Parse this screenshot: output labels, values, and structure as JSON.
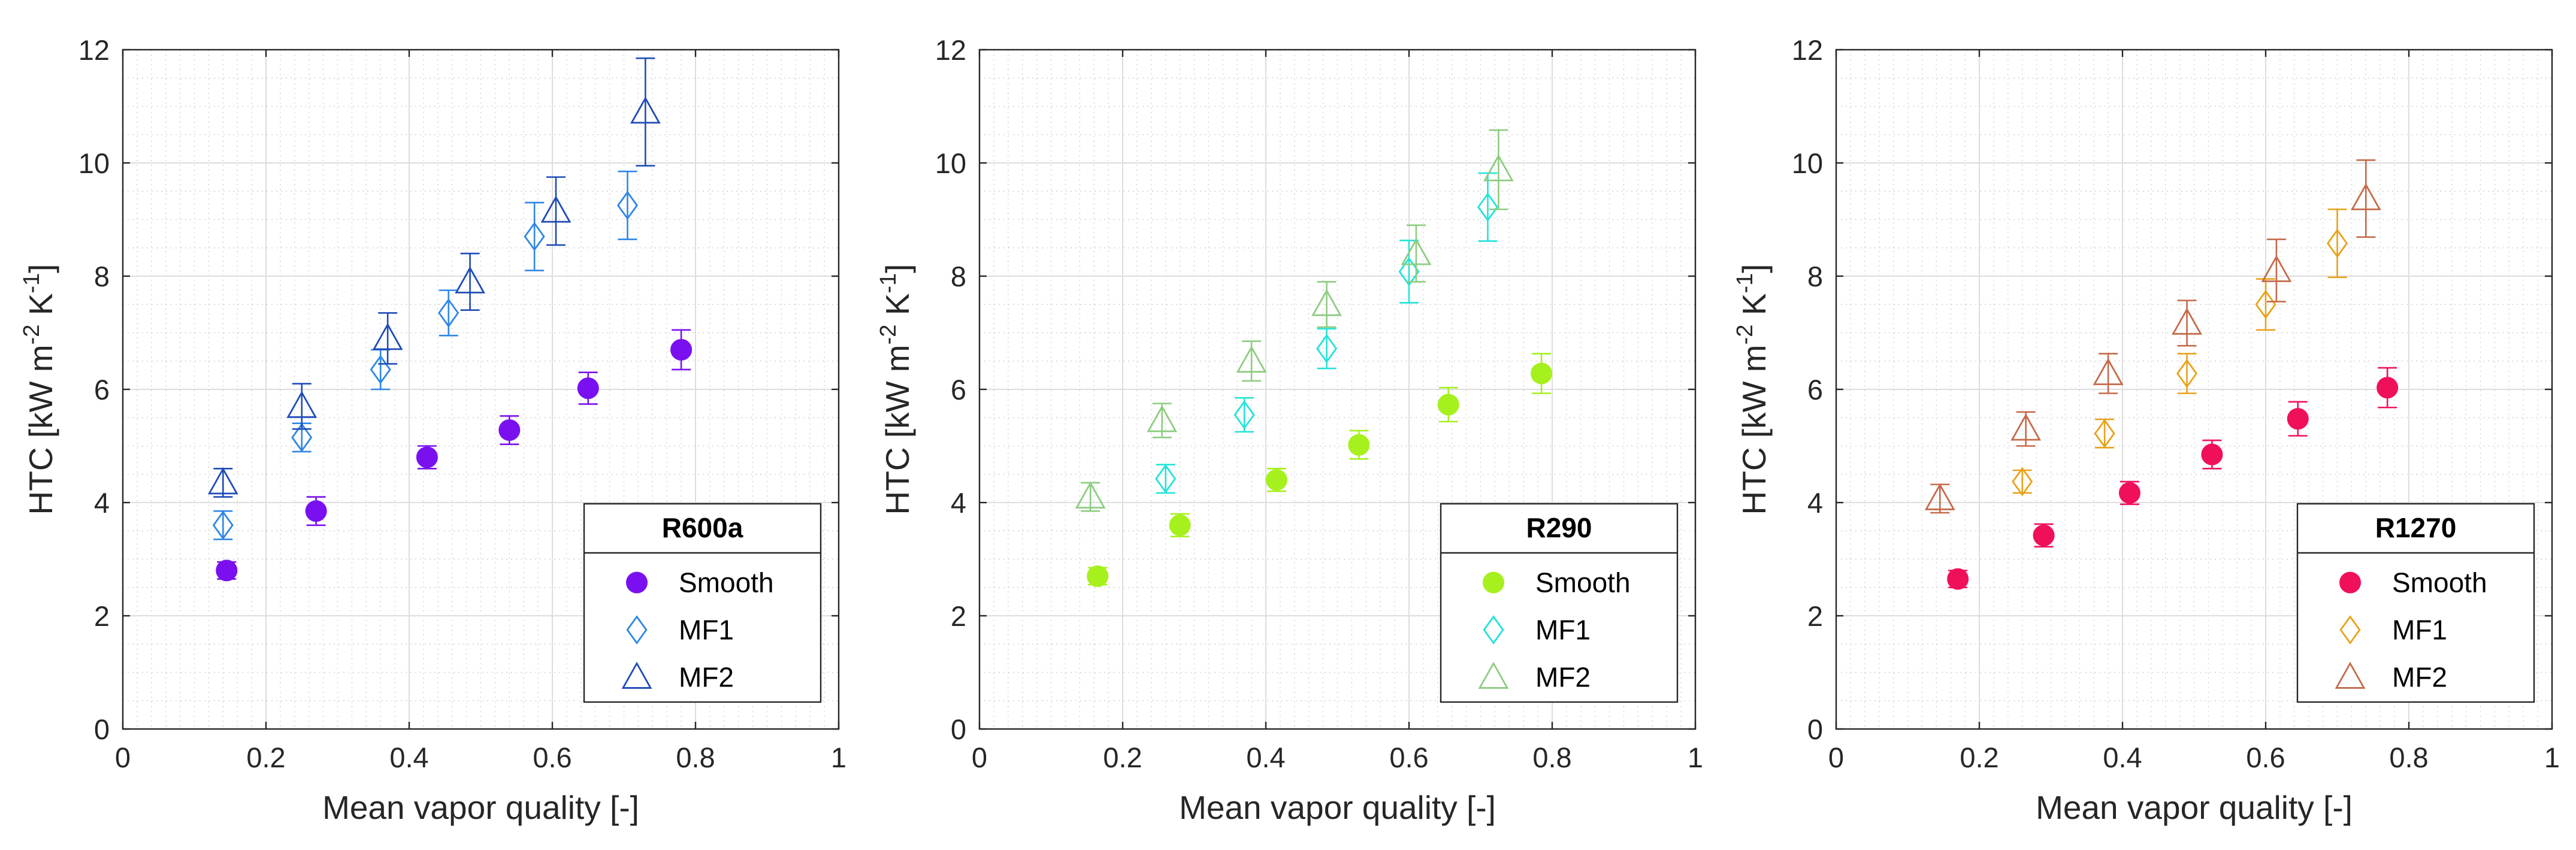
{
  "chart_data": [
    {
      "type": "scatter",
      "title": "",
      "legend_title": "R600a",
      "legend_position": "bottom-right",
      "xlabel": "Mean vapor quality [-]",
      "ylabel_main": "HTC [kW m",
      "ylabel_exp1": "-2",
      "ylabel_mid": " K",
      "ylabel_exp2": "-1",
      "ylabel_end": "]",
      "xlim": [
        0,
        1
      ],
      "ylim": [
        0,
        12
      ],
      "grid": true,
      "minor_grid": true,
      "x_ticks": [
        "0",
        "0.2",
        "0.4",
        "0.6",
        "0.8",
        "1"
      ],
      "y_ticks": [
        "0",
        "2",
        "4",
        "6",
        "8",
        "10",
        "12"
      ],
      "series": [
        {
          "name": "Smooth",
          "marker": "filled-circle",
          "color": "#7A10F0",
          "x": [
            0.145,
            0.27,
            0.425,
            0.54,
            0.65,
            0.78
          ],
          "y": [
            2.8,
            3.85,
            4.8,
            5.28,
            6.02,
            6.7
          ],
          "err": [
            0.15,
            0.25,
            0.2,
            0.25,
            0.28,
            0.35
          ]
        },
        {
          "name": "MF1",
          "marker": "diamond",
          "color": "#2E86E6",
          "x": [
            0.14,
            0.25,
            0.36,
            0.455,
            0.575,
            0.705
          ],
          "y": [
            3.6,
            5.15,
            6.35,
            7.35,
            8.7,
            9.25
          ],
          "err": [
            0.25,
            0.25,
            0.35,
            0.4,
            0.6,
            0.6
          ]
        },
        {
          "name": "MF2",
          "marker": "triangle",
          "color": "#1F4BB8",
          "x": [
            0.14,
            0.25,
            0.37,
            0.485,
            0.605,
            0.73
          ],
          "y": [
            4.35,
            5.7,
            6.9,
            7.9,
            9.15,
            10.9
          ],
          "err": [
            0.25,
            0.4,
            0.45,
            0.5,
            0.6,
            0.95
          ]
        }
      ]
    },
    {
      "type": "scatter",
      "title": "",
      "legend_title": "R290",
      "legend_position": "bottom-right",
      "xlabel": "Mean vapor quality [-]",
      "ylabel_main": "HTC [kW m",
      "ylabel_exp1": "-2",
      "ylabel_mid": " K",
      "ylabel_exp2": "-1",
      "ylabel_end": "]",
      "xlim": [
        0,
        1
      ],
      "ylim": [
        0,
        12
      ],
      "grid": true,
      "minor_grid": true,
      "x_ticks": [
        "0",
        "0.2",
        "0.4",
        "0.6",
        "0.8",
        "1"
      ],
      "y_ticks": [
        "0",
        "2",
        "4",
        "6",
        "8",
        "10",
        "12"
      ],
      "series": [
        {
          "name": "Smooth",
          "marker": "filled-circle",
          "color": "#A6F01E",
          "x": [
            0.165,
            0.28,
            0.415,
            0.53,
            0.655,
            0.785
          ],
          "y": [
            2.7,
            3.6,
            4.4,
            5.02,
            5.73,
            6.28
          ],
          "err": [
            0.15,
            0.2,
            0.2,
            0.25,
            0.3,
            0.35
          ]
        },
        {
          "name": "MF1",
          "marker": "diamond",
          "color": "#22E3D8",
          "x": [
            0.26,
            0.37,
            0.485,
            0.6,
            0.71
          ],
          "y": [
            4.42,
            5.55,
            6.72,
            8.08,
            9.22
          ],
          "err": [
            0.25,
            0.3,
            0.35,
            0.55,
            0.6
          ]
        },
        {
          "name": "MF2",
          "marker": "triangle",
          "color": "#8DCC80",
          "x": [
            0.155,
            0.255,
            0.38,
            0.485,
            0.61,
            0.725
          ],
          "y": [
            4.1,
            5.45,
            6.5,
            7.5,
            8.4,
            9.88
          ],
          "err": [
            0.25,
            0.3,
            0.35,
            0.4,
            0.5,
            0.7
          ]
        }
      ]
    },
    {
      "type": "scatter",
      "title": "",
      "legend_title": "R1270",
      "legend_position": "bottom-right",
      "xlabel": "Mean vapor quality [-]",
      "ylabel_main": "HTC [kW m",
      "ylabel_exp1": "-2",
      "ylabel_mid": " K",
      "ylabel_exp2": "-1",
      "ylabel_end": "]",
      "xlim": [
        0,
        1
      ],
      "ylim": [
        0,
        12
      ],
      "grid": true,
      "minor_grid": true,
      "x_ticks": [
        "0",
        "0.2",
        "0.4",
        "0.6",
        "0.8",
        "1"
      ],
      "y_ticks": [
        "0",
        "2",
        "4",
        "6",
        "8",
        "10",
        "12"
      ],
      "series": [
        {
          "name": "Smooth",
          "marker": "filled-circle",
          "color": "#F0105A",
          "x": [
            0.17,
            0.29,
            0.41,
            0.525,
            0.645,
            0.77
          ],
          "y": [
            2.65,
            3.42,
            4.17,
            4.85,
            5.48,
            6.03
          ],
          "err": [
            0.15,
            0.2,
            0.2,
            0.25,
            0.3,
            0.35
          ]
        },
        {
          "name": "MF1",
          "marker": "diamond",
          "color": "#E8A21A",
          "x": [
            0.26,
            0.375,
            0.49,
            0.6,
            0.7
          ],
          "y": [
            4.37,
            5.22,
            6.28,
            7.5,
            8.58
          ],
          "err": [
            0.2,
            0.25,
            0.35,
            0.45,
            0.6
          ]
        },
        {
          "name": "MF2",
          "marker": "triangle",
          "color": "#C46A4A",
          "x": [
            0.145,
            0.265,
            0.38,
            0.49,
            0.615,
            0.74
          ],
          "y": [
            4.07,
            5.3,
            6.28,
            7.17,
            8.1,
            9.37
          ],
          "err": [
            0.25,
            0.3,
            0.35,
            0.4,
            0.55,
            0.68
          ]
        }
      ]
    }
  ]
}
